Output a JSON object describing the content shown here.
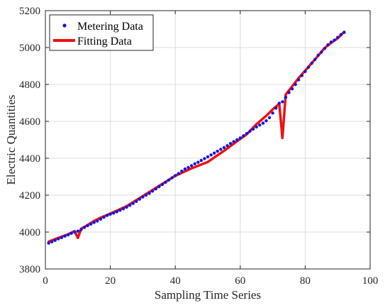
{
  "chart_data": {
    "type": "line",
    "title": "",
    "xlabel": "Sampling Time Series",
    "ylabel": "Electric Quantities",
    "xlim": [
      0,
      100
    ],
    "ylim": [
      3800,
      5200
    ],
    "xticks": [
      0,
      20,
      40,
      60,
      80,
      100
    ],
    "yticks": [
      3800,
      4000,
      4200,
      4400,
      4600,
      4800,
      5000,
      5200
    ],
    "grid": true,
    "legend_position": "top-left",
    "series": [
      {
        "name": "Metering Data",
        "style": "dots",
        "color": "#1515e0",
        "x": [
          1,
          2,
          3,
          4,
          5,
          6,
          7,
          8,
          9,
          10,
          11,
          12,
          13,
          14,
          15,
          16,
          17,
          18,
          19,
          20,
          21,
          22,
          23,
          24,
          25,
          26,
          27,
          28,
          29,
          30,
          31,
          32,
          33,
          34,
          35,
          36,
          37,
          38,
          39,
          40,
          41,
          42,
          43,
          44,
          45,
          46,
          47,
          48,
          49,
          50,
          51,
          52,
          53,
          54,
          55,
          56,
          57,
          58,
          59,
          60,
          61,
          62,
          63,
          64,
          65,
          66,
          67,
          68,
          69,
          70,
          71,
          72,
          73,
          74,
          75,
          76,
          77,
          78,
          79,
          80,
          81,
          82,
          83,
          84,
          85,
          86,
          87,
          88,
          89,
          90,
          91,
          92
        ],
        "values": [
          3940,
          3947,
          3955,
          3963,
          3970,
          3978,
          3985,
          3993,
          4000,
          4005,
          4013,
          4025,
          4035,
          4043,
          4052,
          4060,
          4070,
          4080,
          4090,
          4097,
          4103,
          4110,
          4118,
          4126,
          4135,
          4145,
          4155,
          4166,
          4178,
          4190,
          4200,
          4210,
          4222,
          4234,
          4246,
          4258,
          4270,
          4282,
          4294,
          4306,
          4317,
          4330,
          4342,
          4350,
          4360,
          4370,
          4378,
          4388,
          4398,
          4408,
          4418,
          4428,
          4438,
          4448,
          4458,
          4468,
          4480,
          4490,
          4500,
          4510,
          4522,
          4534,
          4546,
          4558,
          4570,
          4580,
          4590,
          4603,
          4620,
          4645,
          4672,
          4698,
          4706,
          4730,
          4756,
          4776,
          4800,
          4825,
          4848,
          4870,
          4893,
          4915,
          4935,
          4958,
          4975,
          4995,
          5015,
          5030,
          5040,
          5055,
          5070,
          5082
        ]
      },
      {
        "name": "Fitting Data",
        "style": "line",
        "color": "#ee1111",
        "x": [
          1,
          3,
          5,
          7,
          9,
          10,
          11,
          13,
          15,
          17,
          20,
          25,
          30,
          35,
          40,
          45,
          50,
          55,
          60,
          62,
          65,
          68,
          70,
          72,
          73,
          74,
          76,
          78,
          80,
          83,
          86,
          88,
          90,
          92
        ],
        "values": [
          3948,
          3962,
          3975,
          3988,
          4005,
          3968,
          4018,
          4038,
          4060,
          4078,
          4100,
          4140,
          4195,
          4250,
          4305,
          4345,
          4380,
          4440,
          4505,
          4530,
          4585,
          4630,
          4665,
          4695,
          4510,
          4745,
          4790,
          4835,
          4875,
          4935,
          4998,
          5025,
          5050,
          5085
        ]
      }
    ]
  }
}
